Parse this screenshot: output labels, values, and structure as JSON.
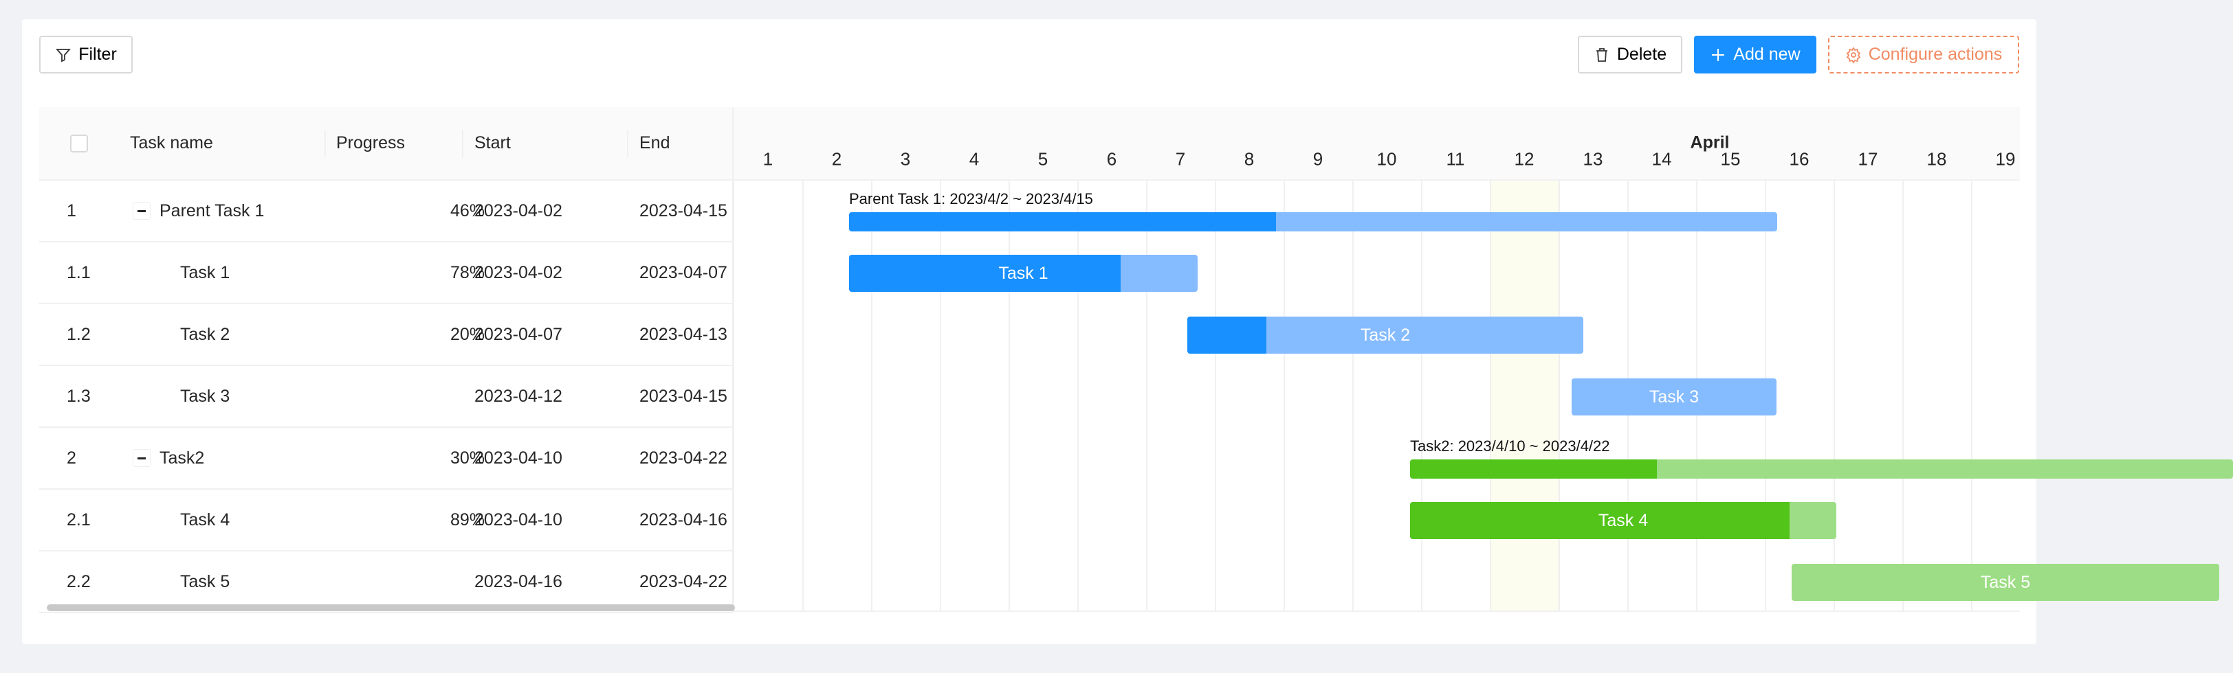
{
  "toolbar": {
    "filter_label": "Filter",
    "delete_label": "Delete",
    "add_label": "Add new",
    "configure_label": "Configure actions"
  },
  "colors": {
    "primary": "#1890ff",
    "primary_light": "#85bbff",
    "success": "#52c41a",
    "success_light": "#9ddd85",
    "configure": "#f18b62",
    "today_highlight": "#fcfcef"
  },
  "icons": {
    "filter": "filter-icon",
    "delete": "trash-icon",
    "add": "plus-icon",
    "configure": "gear-icon",
    "collapse": "minus-icon"
  },
  "table": {
    "headers": {
      "name": "Task name",
      "progress": "Progress",
      "start": "Start",
      "end": "End"
    },
    "rows": [
      {
        "no": "1",
        "name": "Parent Task 1",
        "progress": "46%",
        "start": "2023-04-02",
        "end": "2023-04-15",
        "parent": true
      },
      {
        "no": "1.1",
        "name": "Task 1",
        "progress": "78%",
        "start": "2023-04-02",
        "end": "2023-04-07",
        "parent": false
      },
      {
        "no": "1.2",
        "name": "Task 2",
        "progress": "20%",
        "start": "2023-04-07",
        "end": "2023-04-13",
        "parent": false
      },
      {
        "no": "1.3",
        "name": "Task 3",
        "progress": "",
        "start": "2023-04-12",
        "end": "2023-04-15",
        "parent": false
      },
      {
        "no": "2",
        "name": "Task2",
        "progress": "30%",
        "start": "2023-04-10",
        "end": "2023-04-22",
        "parent": true
      },
      {
        "no": "2.1",
        "name": "Task 4",
        "progress": "89%",
        "start": "2023-04-10",
        "end": "2023-04-16",
        "parent": false
      },
      {
        "no": "2.2",
        "name": "Task 5",
        "progress": "",
        "start": "2023-04-16",
        "end": "2023-04-22",
        "parent": false
      }
    ]
  },
  "gantt": {
    "month": "April",
    "days": [
      "1",
      "2",
      "3",
      "4",
      "5",
      "6",
      "7",
      "8",
      "9",
      "10",
      "11",
      "12",
      "13",
      "14",
      "15",
      "16",
      "17",
      "18",
      "19"
    ],
    "today_day": "12",
    "bars": [
      {
        "label": "Parent Task 1: 2023/4/2 ~ 2023/4/15",
        "progress": 46,
        "color": "blue",
        "summary": true
      },
      {
        "label": "Task 1",
        "progress": 78,
        "color": "blue",
        "summary": false
      },
      {
        "label": "Task 2",
        "progress": 20,
        "color": "blue",
        "summary": false
      },
      {
        "label": "Task 3",
        "progress": 0,
        "color": "blue",
        "summary": false
      },
      {
        "label": "Task2: 2023/4/10 ~ 2023/4/22",
        "progress": 30,
        "color": "green",
        "summary": true
      },
      {
        "label": "Task 4",
        "progress": 89,
        "color": "green",
        "summary": false
      },
      {
        "label": "Task 5",
        "progress": 0,
        "color": "green",
        "summary": false
      }
    ]
  }
}
